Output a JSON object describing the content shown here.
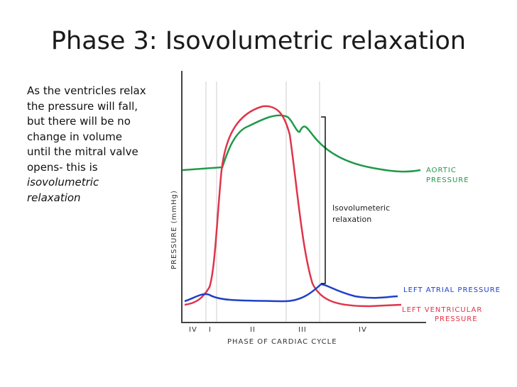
{
  "header": {
    "title": "Phase 3: Isovolumetric relaxation"
  },
  "body": {
    "text": "As the ventricles relax the pressure will fall, but there will be no change in volume until the mitral valve opens- this is",
    "emphasis": "isovolumetric relaxation"
  },
  "diagram": {
    "y_axis_label": "PRESSURE (mmHg)",
    "x_axis_label": "PHASE OF CARDIAC CYCLE",
    "phases": [
      "IV",
      "I",
      "II",
      "III",
      "IV"
    ],
    "curves": {
      "aortic": "AORTIC PRESSURE",
      "atrial": "LEFT ATRIAL PRESSURE",
      "ventricular_1": "LEFT VENTRICULAR",
      "ventricular_2": "PRESSURE"
    },
    "annotation": {
      "line1": "Isovolumeteric",
      "line2": "relaxation"
    }
  }
}
